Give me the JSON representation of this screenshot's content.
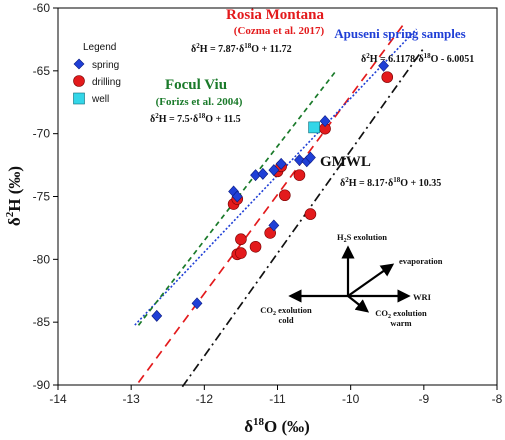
{
  "chart_data": {
    "type": "scatter",
    "xlabel": "δ18O (‰)",
    "ylabel": "δ2H (‰)",
    "xlim": [
      -14,
      -8
    ],
    "ylim": [
      -90,
      -60
    ],
    "x_ticks": [
      -14,
      -13,
      -12,
      -11,
      -10,
      -9,
      -8
    ],
    "y_ticks": [
      -90,
      -85,
      -80,
      -75,
      -70,
      -65,
      -60
    ],
    "legend": {
      "title": "Legend",
      "placement": "top-left",
      "entries": [
        {
          "label": "spring",
          "marker": "diamond",
          "color": "#1f3fd6"
        },
        {
          "label": "drilling",
          "marker": "circle",
          "color": "#e31a1c"
        },
        {
          "label": "well",
          "marker": "square",
          "color": "#33d6e8"
        }
      ]
    },
    "series": [
      {
        "name": "spring",
        "marker": "diamond",
        "color": "#1f3fd6",
        "points": [
          [
            -12.65,
            -84.5
          ],
          [
            -12.1,
            -83.5
          ],
          [
            -11.6,
            -74.6
          ],
          [
            -11.55,
            -75.0
          ],
          [
            -11.3,
            -73.3
          ],
          [
            -11.2,
            -73.2
          ],
          [
            -11.05,
            -72.9
          ],
          [
            -11.05,
            -77.3
          ],
          [
            -10.95,
            -72.4
          ],
          [
            -10.7,
            -72.1
          ],
          [
            -10.6,
            -72.2
          ],
          [
            -10.55,
            -71.9
          ],
          [
            -10.35,
            -69.0
          ],
          [
            -9.55,
            -64.6
          ]
        ]
      },
      {
        "name": "drilling",
        "marker": "circle",
        "color": "#e31a1c",
        "points": [
          [
            -11.6,
            -75.6
          ],
          [
            -11.55,
            -75.2
          ],
          [
            -11.55,
            -79.6
          ],
          [
            -11.5,
            -79.5
          ],
          [
            -11.5,
            -78.4
          ],
          [
            -11.3,
            -79.0
          ],
          [
            -11.1,
            -77.9
          ],
          [
            -11.0,
            -73.0
          ],
          [
            -10.95,
            -72.6
          ],
          [
            -10.9,
            -74.9
          ],
          [
            -10.7,
            -73.3
          ],
          [
            -10.55,
            -76.4
          ],
          [
            -10.35,
            -69.6
          ],
          [
            -9.5,
            -65.5
          ]
        ]
      },
      {
        "name": "well",
        "marker": "square",
        "color": "#33d6e8",
        "points": [
          [
            -10.5,
            -69.5
          ]
        ]
      }
    ],
    "lines": [
      {
        "id": "rosia",
        "title": "Rosia Montana",
        "subtitle": "(Cozma et al. 2017)",
        "equation": "δ2H = 7.87·δ18O + 11.72",
        "slope": 7.87,
        "intercept": 11.72,
        "x_range": [
          -12.9,
          -9.25
        ],
        "color": "#e31a1c",
        "style": "long-dash"
      },
      {
        "id": "apuseni",
        "title": "Apuseni spring samples",
        "subtitle": "",
        "equation": "δ2H = 6.1178·δ18O - 6.0051",
        "slope": 6.1178,
        "intercept": -6.0051,
        "x_range": [
          -12.95,
          -9.1
        ],
        "color": "#1f3fd6",
        "style": "dotted"
      },
      {
        "id": "focul",
        "title": "Focul Viu",
        "subtitle": "(Forizs et al. 2004)",
        "equation": "δ2H = 7.5·δ18O + 11.5",
        "slope": 7.5,
        "intercept": 11.5,
        "x_range": [
          -12.9,
          -10.2
        ],
        "color": "#1a7a2a",
        "style": "dash"
      },
      {
        "id": "gmwl",
        "title": "GMWL",
        "subtitle": "",
        "equation": "δ2H = 8.17·δ18O + 10.35",
        "slope": 8.17,
        "intercept": 10.35,
        "x_range": [
          -12.3,
          -9.0
        ],
        "color": "#111111",
        "style": "dash-dot"
      }
    ],
    "vector_diagram": {
      "up": {
        "label": "H2S exolution"
      },
      "diagonal": {
        "label": "evaporation"
      },
      "right": {
        "label": "WRI"
      },
      "left": {
        "label": "CO2 exolution cold"
      },
      "down_right": {
        "label": "CO2 exolution warm"
      }
    }
  }
}
